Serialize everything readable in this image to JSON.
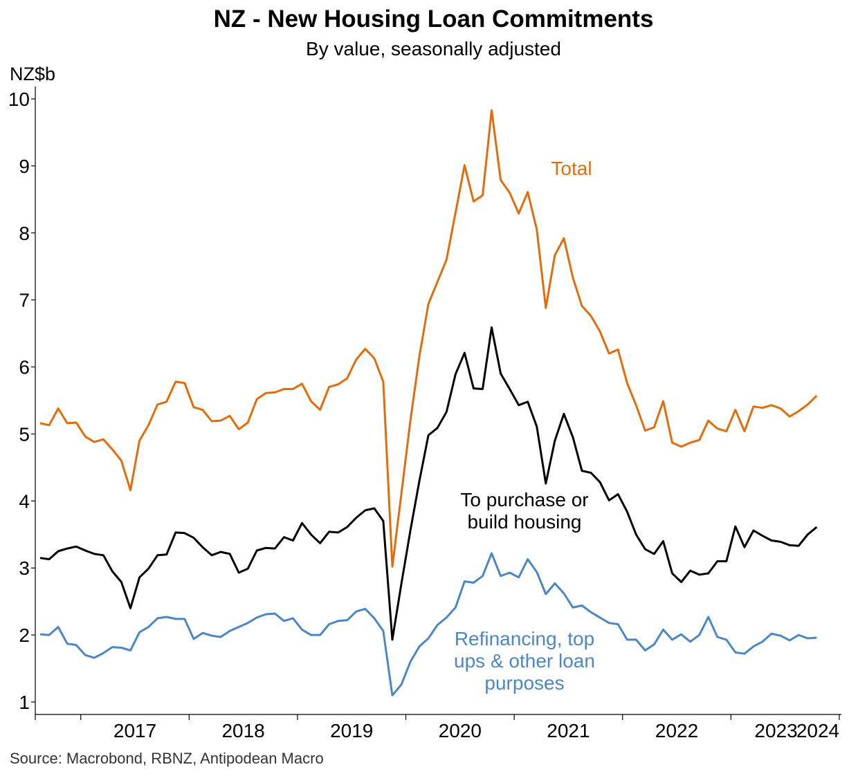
{
  "source": "Source: Macrobond, RBNZ, Antipodean Macro",
  "chart_data": {
    "type": "line",
    "title": "NZ - New Housing Loan Commitments",
    "subtitle": "By value, seasonally adjusted",
    "ylabel": "NZ$b",
    "xlabel": "",
    "ylim": [
      1,
      10
    ],
    "yticks": [
      "1",
      "2",
      "3",
      "4",
      "5",
      "6",
      "7",
      "8",
      "9",
      "10"
    ],
    "x_start": "2016-08",
    "x_end": "2024-03",
    "year_labels": [
      "2017",
      "2018",
      "2019",
      "2020",
      "2021",
      "2022",
      "2023",
      "2024"
    ],
    "grid": false,
    "legend": "inline labels",
    "series": [
      {
        "name": "Total",
        "label_lines": [
          "Total"
        ],
        "color": "#E36C0A",
        "values": [
          5.16,
          5.13,
          5.38,
          5.16,
          5.17,
          4.96,
          4.88,
          4.92,
          4.77,
          4.6,
          4.16,
          4.9,
          5.13,
          5.44,
          5.48,
          5.78,
          5.76,
          5.4,
          5.36,
          5.19,
          5.2,
          5.27,
          5.07,
          5.17,
          5.52,
          5.61,
          5.62,
          5.67,
          5.67,
          5.75,
          5.49,
          5.36,
          5.7,
          5.74,
          5.83,
          6.11,
          6.27,
          6.13,
          5.78,
          3.02,
          4.1,
          5.2,
          6.16,
          6.94,
          7.27,
          7.6,
          8.3,
          9.01,
          8.47,
          8.56,
          9.83,
          8.79,
          8.6,
          8.29,
          8.61,
          8.05,
          6.88,
          7.67,
          7.92,
          7.33,
          6.91,
          6.76,
          6.53,
          6.2,
          6.26,
          5.76,
          5.43,
          5.05,
          5.1,
          5.49,
          4.87,
          4.81,
          4.87,
          4.91,
          5.2,
          5.08,
          5.04,
          5.36,
          5.04,
          5.41,
          5.39,
          5.43,
          5.38,
          5.26,
          5.34,
          5.44,
          5.57
        ]
      },
      {
        "name": "To purchase or build housing",
        "label_lines": [
          "To purchase or",
          "build housing"
        ],
        "color": "#000000",
        "values": [
          3.15,
          3.13,
          3.25,
          3.29,
          3.32,
          3.26,
          3.21,
          3.19,
          2.95,
          2.79,
          2.4,
          2.86,
          2.99,
          3.19,
          3.2,
          3.53,
          3.52,
          3.45,
          3.31,
          3.19,
          3.24,
          3.21,
          2.93,
          2.99,
          3.26,
          3.3,
          3.29,
          3.46,
          3.41,
          3.67,
          3.5,
          3.37,
          3.54,
          3.53,
          3.61,
          3.75,
          3.86,
          3.89,
          3.7,
          1.93,
          2.76,
          3.56,
          4.3,
          4.98,
          5.09,
          5.33,
          5.89,
          6.21,
          5.68,
          5.67,
          6.59,
          5.9,
          5.67,
          5.43,
          5.48,
          5.11,
          4.26,
          4.9,
          5.3,
          4.95,
          4.45,
          4.42,
          4.28,
          4.01,
          4.1,
          3.84,
          3.5,
          3.28,
          3.21,
          3.4,
          2.92,
          2.79,
          2.96,
          2.9,
          2.92,
          3.1,
          3.1,
          3.62,
          3.31,
          3.56,
          3.48,
          3.41,
          3.39,
          3.34,
          3.33,
          3.5,
          3.61
        ]
      },
      {
        "name": "Refinancing, top ups & other loan purposes",
        "label_lines": [
          "Refinancing, top",
          "ups & other loan",
          "purposes"
        ],
        "color": "#4A86C8",
        "values": [
          2.01,
          2.0,
          2.12,
          1.87,
          1.85,
          1.7,
          1.66,
          1.73,
          1.82,
          1.81,
          1.77,
          2.04,
          2.12,
          2.25,
          2.27,
          2.24,
          2.24,
          1.94,
          2.03,
          1.99,
          1.97,
          2.06,
          2.12,
          2.18,
          2.26,
          2.31,
          2.32,
          2.21,
          2.25,
          2.08,
          2.0,
          2.0,
          2.16,
          2.21,
          2.22,
          2.35,
          2.39,
          2.25,
          2.06,
          1.1,
          1.26,
          1.6,
          1.83,
          1.95,
          2.15,
          2.26,
          2.41,
          2.8,
          2.78,
          2.88,
          3.22,
          2.88,
          2.93,
          2.86,
          3.13,
          2.94,
          2.61,
          2.77,
          2.62,
          2.41,
          2.44,
          2.34,
          2.26,
          2.18,
          2.16,
          1.93,
          1.93,
          1.77,
          1.86,
          2.08,
          1.93,
          2.01,
          1.9,
          2.0,
          2.27,
          1.97,
          1.93,
          1.74,
          1.72,
          1.83,
          1.9,
          2.02,
          1.99,
          1.92,
          2.0,
          1.95,
          1.96
        ]
      }
    ]
  }
}
